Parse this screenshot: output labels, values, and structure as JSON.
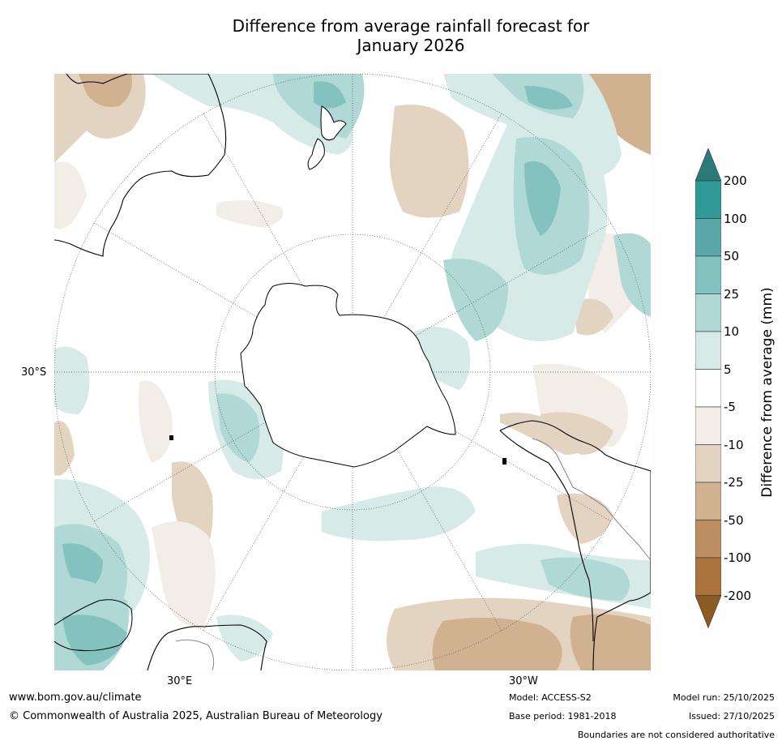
{
  "title_line1": "Difference from average rainfall forecast for",
  "title_line2": "January 2026",
  "map": {
    "projection": "south-polar stereographic",
    "lat_label": "30°S",
    "lon_label_left": "30°E",
    "lon_label_right": "30°W",
    "colors": {
      "wet_200": "#2a8a88",
      "wet_100": "#5aa9a8",
      "wet_50": "#84c2bf",
      "wet_25": "#b0d8d5",
      "wet_10": "#d6eae7",
      "dry_5": "#f2ede6",
      "dry_10": "#e3d3c1",
      "dry_25": "#d0b190",
      "dry_50": "#bc8f62",
      "dry_100": "#ab733d",
      "coast": "#000000",
      "boundary": "#888888"
    }
  },
  "colorbar": {
    "label": "Difference from average (mm)",
    "ticks": [
      "200",
      "100",
      "50",
      "25",
      "10",
      "5",
      "-5",
      "-10",
      "-25",
      "-50",
      "-100",
      "-200"
    ],
    "bins": [
      {
        "range": ">200",
        "color": "#2a7a7a"
      },
      {
        "range": "100 to 200",
        "color": "#2f9a97"
      },
      {
        "range": "50 to 100",
        "color": "#5aa9a8"
      },
      {
        "range": "25 to 50",
        "color": "#84c2bf"
      },
      {
        "range": "10 to 25",
        "color": "#b0d8d5"
      },
      {
        "range": "5 to 10",
        "color": "#d6eae7"
      },
      {
        "range": "-5 to 5",
        "color": "#ffffff"
      },
      {
        "range": "-10 to -5",
        "color": "#f2ede6"
      },
      {
        "range": "-25 to -10",
        "color": "#e3d3c1"
      },
      {
        "range": "-50 to -25",
        "color": "#d0b190"
      },
      {
        "range": "-100 to -50",
        "color": "#bc8f62"
      },
      {
        "range": "-200 to -100",
        "color": "#ab733d"
      },
      {
        "range": "<-200",
        "color": "#8c5a22"
      }
    ]
  },
  "footer": {
    "url": "www.bom.gov.au/climate",
    "copyright": "© Commonwealth of Australia 2025, Australian Bureau of Meteorology",
    "model": "Model: ACCESS-S2",
    "base_period": "Base period: 1981-2018",
    "model_run": "Model run: 25/10/2025",
    "issued": "Issued: 27/10/2025",
    "disclaimer": "Boundaries are not considered authoritative"
  }
}
